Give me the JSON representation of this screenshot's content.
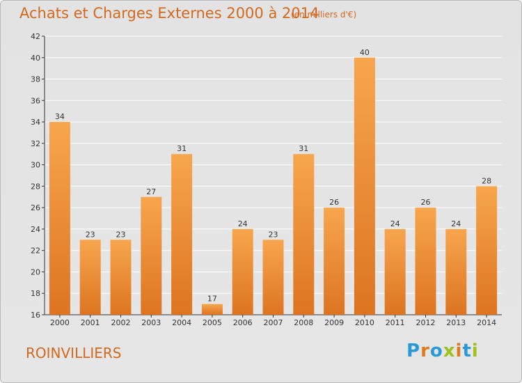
{
  "header": {
    "title": "Achats et Charges Externes 2000 à 2014",
    "subtitle": "(en milliers d'€)"
  },
  "footer": {
    "commune": "ROINVILLIERS",
    "logo_letters": [
      "P",
      "r",
      "o",
      "x",
      "i",
      "t",
      "i"
    ],
    "logo_colors": [
      "#2a9ad6",
      "#e07a1f",
      "#2a9ad6",
      "#9fc21a",
      "#e07a1f",
      "#2a9ad6",
      "#9fc21a"
    ]
  },
  "colors": {
    "bar_top": "#f7a64e",
    "bar_bottom": "#dd7421",
    "text": "#d2691e",
    "grid": "#ffffff",
    "axis": "#333333"
  },
  "chart_data": {
    "type": "bar",
    "categories": [
      "2000",
      "2001",
      "2002",
      "2003",
      "2004",
      "2005",
      "2006",
      "2007",
      "2008",
      "2009",
      "2010",
      "2011",
      "2012",
      "2013",
      "2014"
    ],
    "values": [
      34,
      23,
      23,
      27,
      31,
      17,
      24,
      23,
      31,
      26,
      40,
      24,
      26,
      24,
      28
    ],
    "ylim": [
      16,
      42
    ],
    "yticks": [
      16,
      18,
      20,
      22,
      24,
      26,
      28,
      30,
      32,
      34,
      36,
      38,
      40,
      42
    ],
    "grid": "horizontal",
    "data_labels": true,
    "xlabel": "",
    "ylabel": ""
  }
}
